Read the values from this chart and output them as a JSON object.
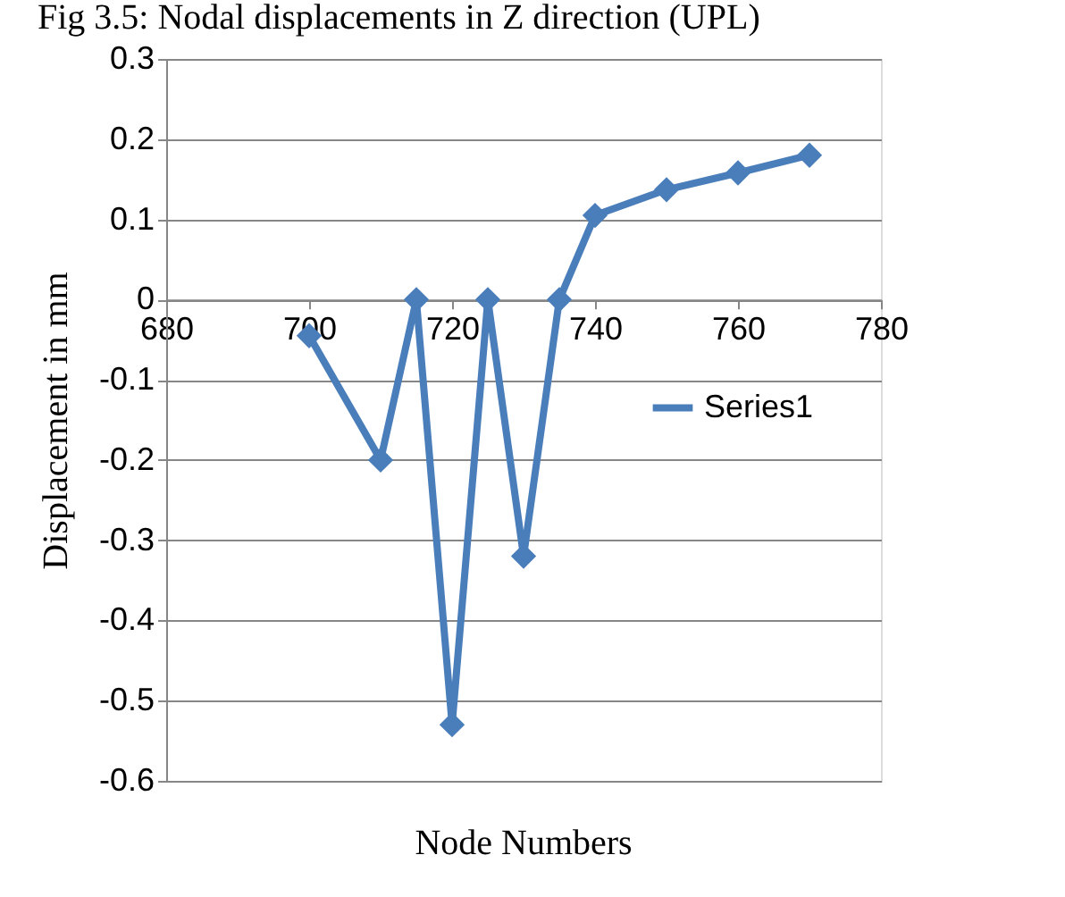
{
  "chart_data": {
    "type": "line",
    "title": "Fig 3.5: Nodal displacements in Z direction (UPL)",
    "xlabel": "Node  Numbers",
    "ylabel": "Displacement in mm",
    "series": [
      {
        "name": "Series1",
        "color": "#4a7ebb",
        "x": [
          700,
          710,
          715,
          720,
          725,
          730,
          735,
          740,
          750,
          760,
          770
        ],
        "values": [
          -0.045,
          -0.2,
          0,
          -0.53,
          0,
          -0.32,
          0,
          0.105,
          0.137,
          0.158,
          0.18
        ]
      }
    ],
    "xlim": [
      680,
      780
    ],
    "xticks": [
      680,
      700,
      720,
      740,
      760,
      780
    ],
    "ylim": [
      -0.6,
      0.3
    ],
    "yticks": [
      -0.6,
      -0.5,
      -0.4,
      -0.3,
      -0.2,
      -0.1,
      0,
      0.1,
      0.2,
      0.3
    ],
    "grid": "y",
    "legend": "right",
    "marker": "diamond",
    "line_style": "solid"
  }
}
